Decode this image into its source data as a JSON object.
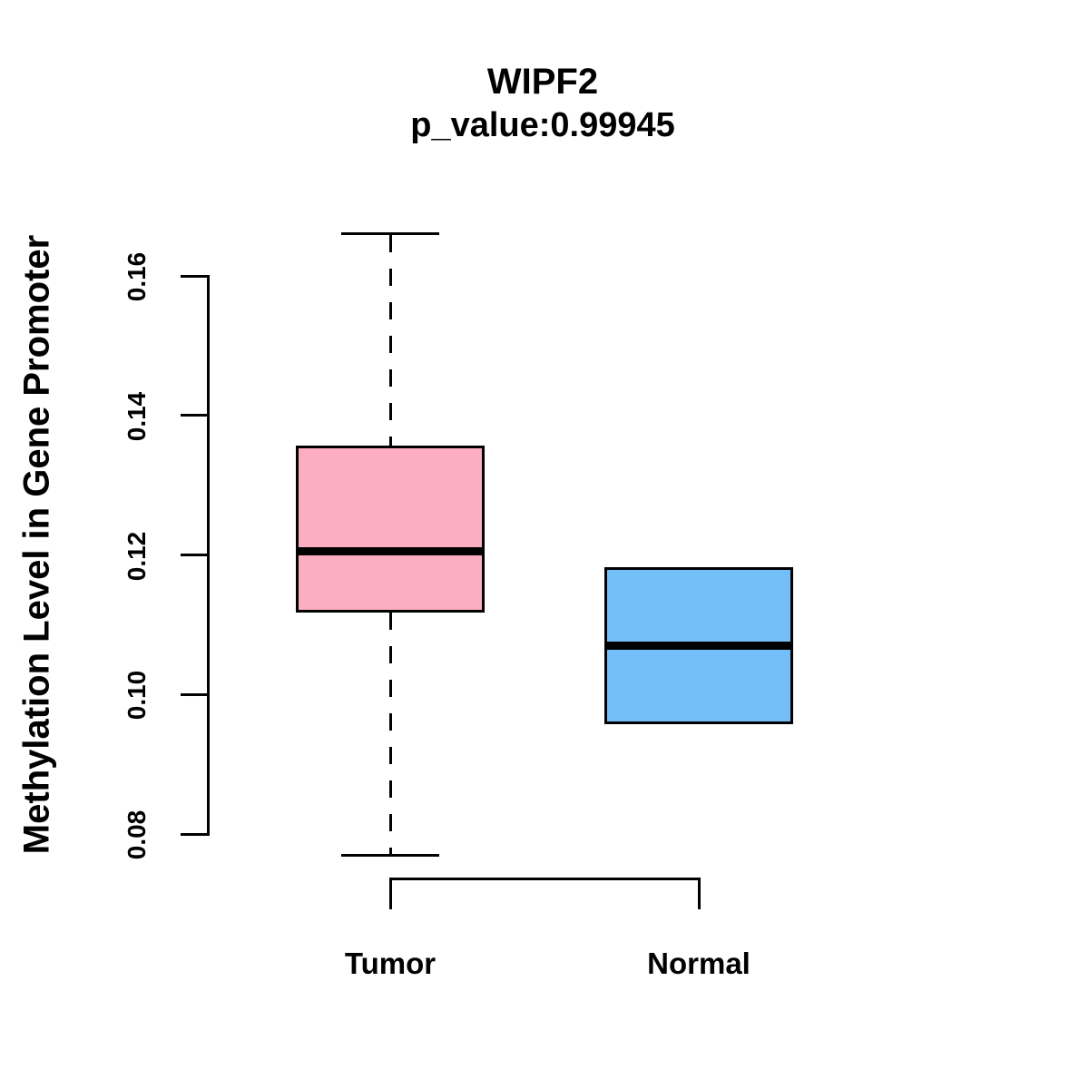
{
  "figure": {
    "title": "WIPF2",
    "subtitle": "p_value:0.99945",
    "y_axis_label": "Methylation Level in Gene Promoter"
  },
  "colors": {
    "tumor_box_fill": "#FCAEC0",
    "normal_box_fill": "#74BFF7",
    "line": "#000000",
    "background": "#FFFFFF"
  },
  "chart_data": {
    "type": "boxplot",
    "title": "WIPF2",
    "subtitle": "p_value:0.99945",
    "xlabel": "",
    "ylabel": "Methylation Level in Gene Promoter",
    "categories": [
      "Tumor",
      "Normal"
    ],
    "y_ticks": [
      0.08,
      0.1,
      0.12,
      0.14,
      0.16
    ],
    "y_tick_labels": [
      "0.08",
      "0.10",
      "0.12",
      "0.14",
      "0.16"
    ],
    "ylim": [
      0.077,
      0.166
    ],
    "grid": false,
    "legend": "none",
    "orientation": "vertical",
    "series": [
      {
        "name": "Tumor",
        "color": "#FCAEC0",
        "stats": {
          "lower_whisker": 0.077,
          "q1": 0.112,
          "median": 0.1205,
          "q3": 0.1355,
          "upper_whisker": 0.166
        },
        "outliers": []
      },
      {
        "name": "Normal",
        "color": "#74BFF7",
        "stats": {
          "lower_whisker": 0.096,
          "q1": 0.096,
          "median": 0.107,
          "q3": 0.118,
          "upper_whisker": 0.118
        },
        "outliers": []
      }
    ]
  }
}
